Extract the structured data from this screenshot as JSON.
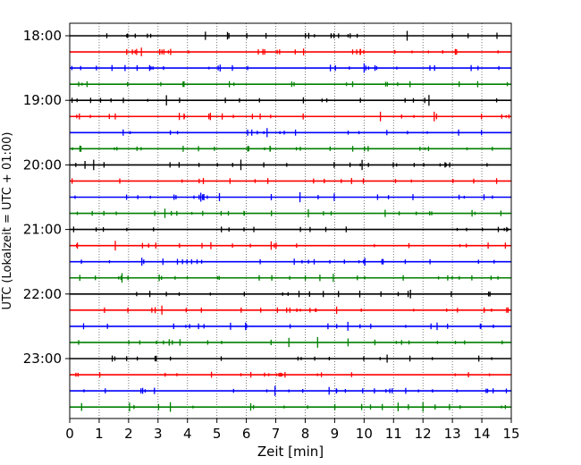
{
  "chart_data": {
    "type": "line",
    "chart_kind": "helicorder / seismogram drum plot",
    "title": "",
    "xlabel": "Zeit  [min]",
    "ylabel": "UTC (Lokalzeit = UTC + 01:00)",
    "xlim": [
      0,
      15
    ],
    "x_ticks": [
      "0",
      "1",
      "2",
      "3",
      "4",
      "5",
      "6",
      "7",
      "8",
      "9",
      "10",
      "11",
      "12",
      "13",
      "14",
      "15"
    ],
    "y_tick_labels": [
      "18:00",
      "19:00",
      "20:00",
      "21:00",
      "22:00",
      "23:00"
    ],
    "grid": "vertical dotted lines at each minute",
    "line_colors": [
      "#000000",
      "#ff0000",
      "#0000ff",
      "#008000"
    ],
    "trace_interval_minutes": 15,
    "traces": [
      {
        "start": "18:00",
        "color": "#000000"
      },
      {
        "start": "18:15",
        "color": "#ff0000"
      },
      {
        "start": "18:30",
        "color": "#0000ff"
      },
      {
        "start": "18:45",
        "color": "#008000"
      },
      {
        "start": "19:00",
        "color": "#000000"
      },
      {
        "start": "19:15",
        "color": "#ff0000"
      },
      {
        "start": "19:30",
        "color": "#0000ff"
      },
      {
        "start": "19:45",
        "color": "#008000"
      },
      {
        "start": "20:00",
        "color": "#000000"
      },
      {
        "start": "20:15",
        "color": "#ff0000"
      },
      {
        "start": "20:30",
        "color": "#0000ff"
      },
      {
        "start": "20:45",
        "color": "#008000"
      },
      {
        "start": "21:00",
        "color": "#000000"
      },
      {
        "start": "21:15",
        "color": "#ff0000"
      },
      {
        "start": "21:30",
        "color": "#0000ff"
      },
      {
        "start": "21:45",
        "color": "#008000"
      },
      {
        "start": "22:00",
        "color": "#000000"
      },
      {
        "start": "22:15",
        "color": "#ff0000"
      },
      {
        "start": "22:30",
        "color": "#0000ff"
      },
      {
        "start": "22:45",
        "color": "#008000"
      },
      {
        "start": "23:00",
        "color": "#000000"
      },
      {
        "start": "23:15",
        "color": "#ff0000"
      },
      {
        "start": "23:30",
        "color": "#0000ff"
      },
      {
        "start": "23:45",
        "color": "#008000"
      }
    ]
  }
}
